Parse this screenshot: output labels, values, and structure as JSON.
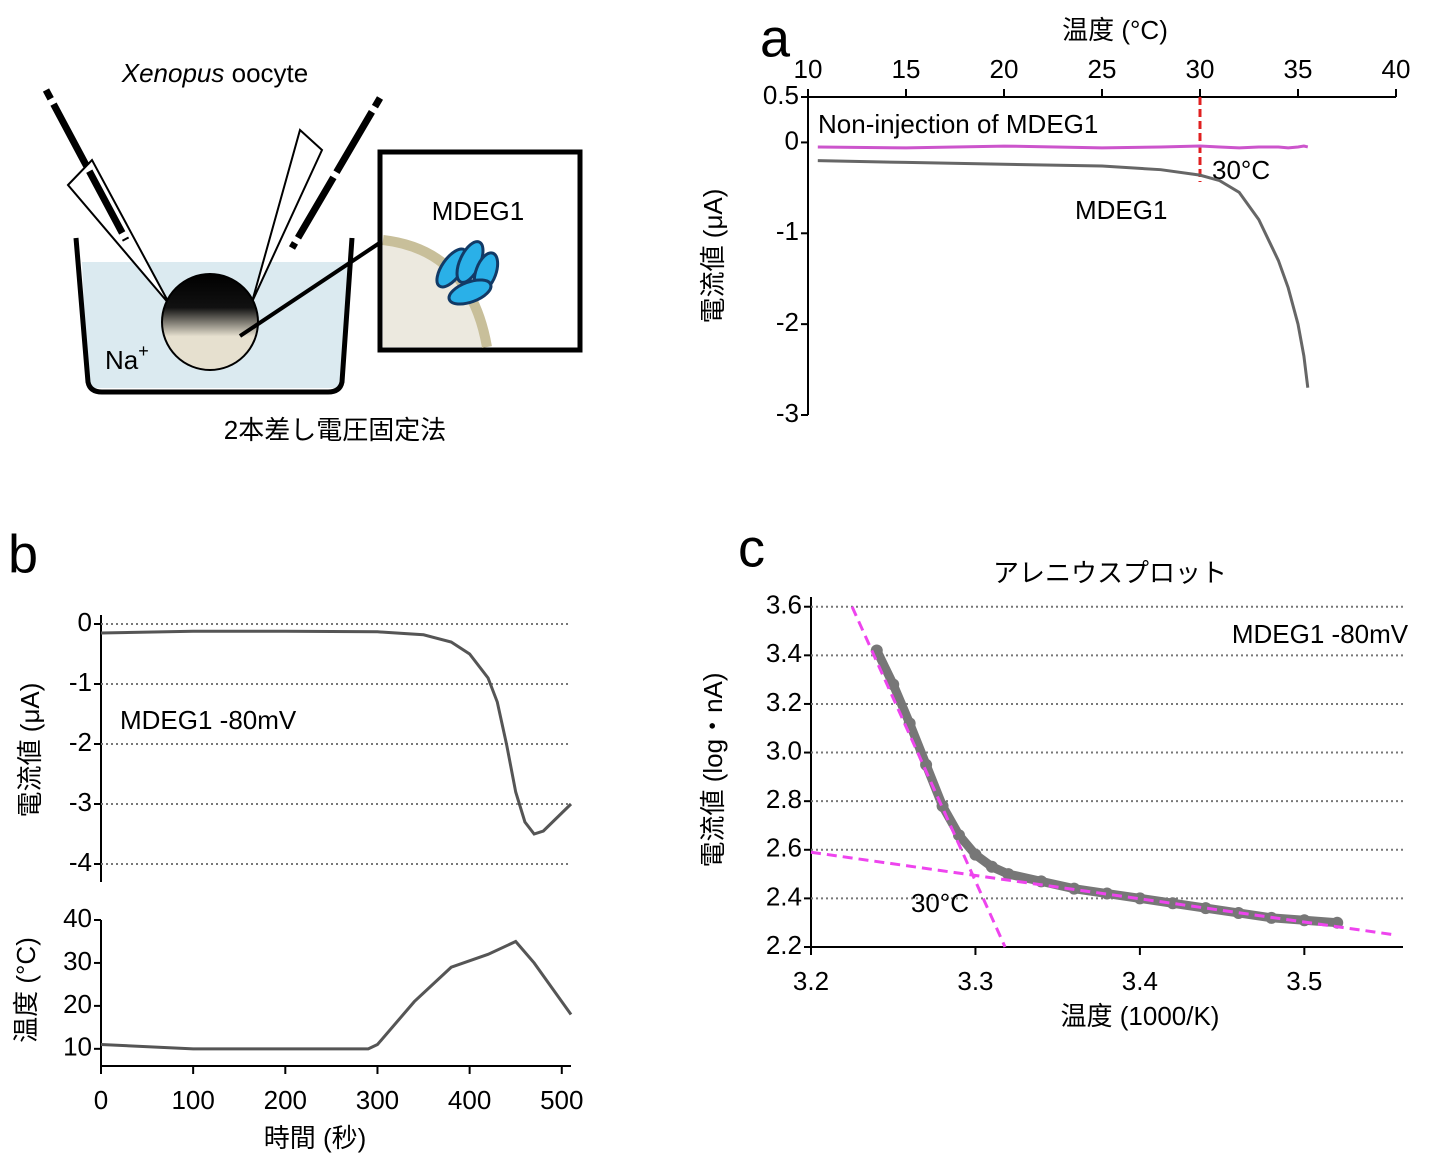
{
  "diagram": {
    "species": "Xenopus",
    "cell": "oocyte",
    "inset_label": "MDEG1",
    "ion": "Na",
    "ion_charge": "+",
    "caption": "2本差し電圧固定法"
  },
  "chart_data": [
    {
      "type": "line",
      "panel": "a",
      "xlabel": "温度 (°C)",
      "ylabel": "電流値 (μA)",
      "xlim": [
        10,
        40
      ],
      "xticks": [
        10,
        15,
        20,
        25,
        30,
        35,
        40
      ],
      "ylim": [
        -3,
        0.5
      ],
      "yticks": [
        0.5,
        0,
        -1,
        -2,
        -3
      ],
      "x": [
        10.5,
        15,
        20,
        25,
        28,
        30,
        31,
        32,
        33,
        34,
        34.5,
        35,
        35.3,
        35.5
      ],
      "series": [
        {
          "name": "Non-injection of MDEG1",
          "color": "#cc55cc",
          "values": [
            -0.05,
            -0.06,
            -0.04,
            -0.06,
            -0.05,
            -0.04,
            -0.05,
            -0.06,
            -0.05,
            -0.05,
            -0.06,
            -0.05,
            -0.04,
            -0.05
          ]
        },
        {
          "name": "MDEG1",
          "color": "#666666",
          "values": [
            -0.2,
            -0.22,
            -0.24,
            -0.26,
            -0.3,
            -0.36,
            -0.42,
            -0.55,
            -0.85,
            -1.3,
            -1.6,
            -2.0,
            -2.35,
            -2.7
          ]
        }
      ],
      "vline": 30,
      "vline_color": "#e02020",
      "annotation": "30°C",
      "grid": false
    },
    {
      "type": "line",
      "panel": "b",
      "ylabel": "電流値 (μA)",
      "annotation": "MDEG1 -80mV",
      "xlim": [
        0,
        510
      ],
      "ylim": [
        -4.3,
        0.15
      ],
      "yticks": [
        0,
        -1,
        -2,
        -3,
        -4
      ],
      "grid": true,
      "x": [
        0,
        100,
        200,
        300,
        350,
        380,
        400,
        420,
        430,
        440,
        450,
        460,
        470,
        480,
        490,
        500,
        510
      ],
      "series": [
        {
          "color": "#555555",
          "values": [
            -0.15,
            -0.12,
            -0.12,
            -0.13,
            -0.18,
            -0.3,
            -0.5,
            -0.9,
            -1.3,
            -2.0,
            -2.8,
            -3.3,
            -3.5,
            -3.45,
            -3.3,
            -3.15,
            -3.0
          ]
        }
      ]
    },
    {
      "type": "line",
      "xlabel": "時間 (秒)",
      "ylabel": "温度 (°C)",
      "xlim": [
        0,
        510
      ],
      "xticks": [
        0,
        100,
        200,
        300,
        400,
        500
      ],
      "ylim": [
        6,
        40
      ],
      "yticks": [
        10,
        20,
        30,
        40
      ],
      "grid": false,
      "x": [
        0,
        100,
        200,
        290,
        300,
        340,
        380,
        420,
        450,
        470,
        490,
        510
      ],
      "series": [
        {
          "color": "#555555",
          "values": [
            11,
            10,
            10,
            10,
            11,
            21,
            29,
            32,
            35,
            30,
            24,
            18
          ]
        }
      ]
    },
    {
      "type": "scatter",
      "panel": "c",
      "title": "アレニウスプロット",
      "annotation": "MDEG1 -80mV",
      "annotation2": "30°C",
      "xlabel": "温度 (1000/K)",
      "ylabel": "電流値 (log・nA)",
      "xlim": [
        3.2,
        3.56
      ],
      "xticks": [
        3.2,
        3.3,
        3.4,
        3.5
      ],
      "ylim": [
        2.2,
        3.64
      ],
      "yticks": [
        2.2,
        2.4,
        2.6,
        2.8,
        {
          "value": 3.0,
          "label": "3.0"
        },
        3.2,
        3.4,
        3.6
      ],
      "grid": true,
      "color": "#777777",
      "x": [
        3.24,
        3.25,
        3.26,
        3.27,
        3.28,
        3.29,
        3.3,
        3.31,
        3.32,
        3.34,
        3.36,
        3.38,
        3.4,
        3.42,
        3.44,
        3.46,
        3.48,
        3.5,
        3.52
      ],
      "values": [
        3.42,
        3.28,
        3.12,
        2.95,
        2.78,
        2.66,
        2.58,
        2.53,
        2.5,
        2.47,
        2.44,
        2.42,
        2.4,
        2.38,
        2.36,
        2.34,
        2.32,
        2.31,
        2.3
      ],
      "fit_color": "#ee44ee",
      "fit_lines": [
        {
          "x": [
            3.225,
            3.318
          ],
          "y": [
            3.6,
            2.2
          ]
        },
        {
          "x": [
            3.2,
            3.555
          ],
          "y": [
            2.59,
            2.25
          ]
        }
      ]
    }
  ]
}
